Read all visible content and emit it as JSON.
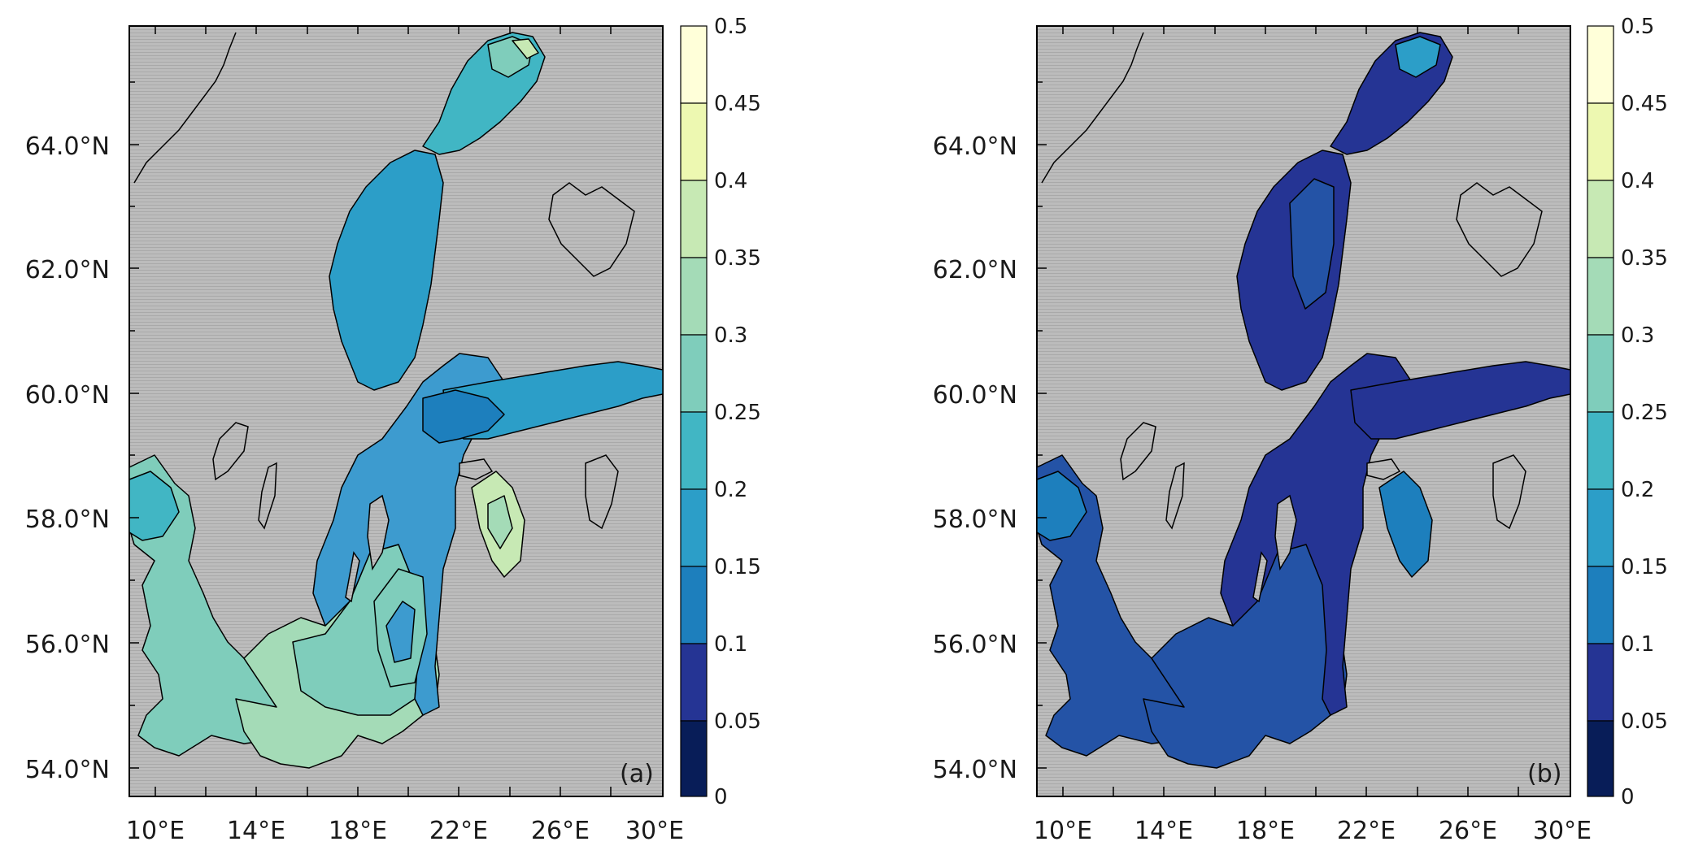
{
  "panels": [
    {
      "label": "(a)",
      "y_ticks": [
        "64.0°N",
        "62.0°N",
        "60.0°N",
        "58.0°N",
        "56.0°N",
        "54.0°N"
      ],
      "x_ticks": [
        "10°E",
        "14°E",
        "18°E",
        "22°E",
        "26°E",
        "30°E"
      ]
    },
    {
      "label": "(b)",
      "y_ticks": [
        "64.0°N",
        "62.0°N",
        "60.0°N",
        "58.0°N",
        "56.0°N",
        "54.0°N"
      ],
      "x_ticks": [
        "10°E",
        "14°E",
        "18°E",
        "22°E",
        "26°E",
        "30°E"
      ]
    }
  ],
  "colorbar": {
    "labels": [
      "0.5",
      "0.45",
      "0.4",
      "0.35",
      "0.3",
      "0.25",
      "0.2",
      "0.15",
      "0.1",
      "0.05",
      "0"
    ],
    "colors": [
      "#ffffd9",
      "#edf8b1",
      "#c7e9b4",
      "#a4dbb7",
      "#7fcdbb",
      "#41b6c4",
      "#2c9ec8",
      "#1d7fbd",
      "#225ea8",
      "#253494",
      "#081d58"
    ]
  },
  "colors": {
    "land": "#b8b8b8",
    "coast": "#000000",
    "panel_a_main": "#3d9bcf",
    "panel_a_light": "#7fcdbb",
    "panel_a_lighter": "#c7e9b4",
    "panel_b_main": "#2453a6",
    "panel_b_dark": "#253494"
  }
}
